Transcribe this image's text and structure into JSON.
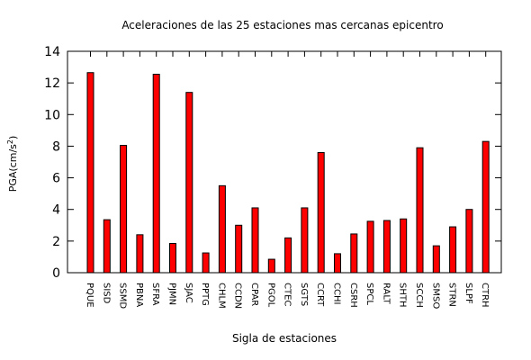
{
  "chart_data": {
    "type": "bar",
    "title": "Aceleraciones de las 25 estaciones mas cercanas epicentro",
    "xlabel": "Sigla de estaciones",
    "ylabel": "PGA(cm/s",
    "ylabel_sup": "2",
    "ylabel_end": ")",
    "ylim": [
      0,
      14
    ],
    "yticks": [
      0,
      2,
      4,
      6,
      8,
      10,
      12,
      14
    ],
    "grid": false,
    "legend": "none",
    "bar_color": "#ff0000",
    "categories": [
      "PQUE",
      "SISD",
      "SSMD",
      "PBNA",
      "SFRA",
      "PJMN",
      "SJAC",
      "PPTG",
      "CHLM",
      "CCDN",
      "CPAR",
      "PGOL",
      "CTEC",
      "SGTS",
      "CCRT",
      "CCHI",
      "CSRH",
      "SPCL",
      "RALT",
      "SHTH",
      "SCCH",
      "SMSO",
      "STRN",
      "SLPF",
      "CTRH"
    ],
    "values": [
      12.65,
      3.35,
      8.05,
      2.4,
      12.55,
      1.85,
      11.4,
      1.25,
      5.5,
      3.0,
      4.1,
      0.85,
      2.2,
      4.1,
      7.6,
      1.2,
      2.45,
      3.25,
      3.3,
      3.4,
      7.9,
      1.7,
      2.9,
      4.0,
      8.3
    ]
  }
}
